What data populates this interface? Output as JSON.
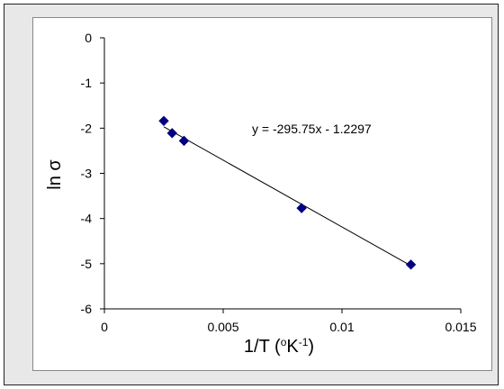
{
  "chart_data": {
    "type": "scatter",
    "xlabel": {
      "main": "1/T (",
      "degree": "o",
      "unit": "K",
      "sup": "-1",
      "close": ")"
    },
    "ylabel": {
      "main": "ln ",
      "symbol": "σ"
    },
    "xlim": [
      0,
      0.015
    ],
    "ylim": [
      -6,
      0
    ],
    "x_ticks": [
      "0",
      "0.005",
      "0.01",
      "0.015"
    ],
    "y_ticks": [
      "0",
      "-1",
      "-2",
      "-3",
      "-4",
      "-5",
      "-6"
    ],
    "x_tick_values": [
      0,
      0.005,
      0.01,
      0.015
    ],
    "y_tick_values": [
      0,
      -1,
      -2,
      -3,
      -4,
      -5,
      -6
    ],
    "points": [
      {
        "x": 0.0025,
        "y": -1.84
      },
      {
        "x": 0.00285,
        "y": -2.11
      },
      {
        "x": 0.00335,
        "y": -2.28
      },
      {
        "x": 0.0083,
        "y": -3.77
      },
      {
        "x": 0.0129,
        "y": -5.02
      }
    ],
    "trendline": {
      "slope": -295.75,
      "intercept": -1.2297,
      "x_range": [
        0.0025,
        0.0129
      ]
    },
    "equation": "y = -295.75x - 1.2297",
    "grid": false,
    "legend": "none",
    "marker_color": "#000080",
    "line_color": "#000000"
  }
}
